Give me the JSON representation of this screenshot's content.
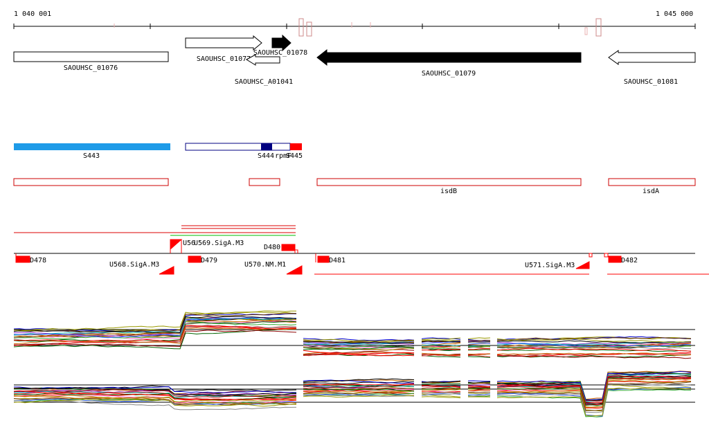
{
  "window": {
    "title": ""
  },
  "ruler": {
    "start_label": "1 040 001",
    "end_label": "1 045 000",
    "start": 1040001,
    "end": 1045000
  },
  "genes": [
    {
      "id": "gene-SAOUHSC_01076",
      "label": "SAOUHSC_01076",
      "strand": "none",
      "filled": false
    },
    {
      "id": "gene-SAOUHSC_01077",
      "label": "SAOUHSC_01077",
      "strand": "+",
      "filled": false
    },
    {
      "id": "gene-SAOUHSC_01078",
      "label": "SAOUHSC_01078",
      "strand": "+",
      "filled": true
    },
    {
      "id": "gene-SAOUHSC_A01041",
      "label": "SAOUHSC_A01041",
      "strand": "-",
      "filled": false
    },
    {
      "id": "gene-SAOUHSC_01079",
      "label": "SAOUHSC_01079",
      "strand": "-",
      "filled": true
    },
    {
      "id": "gene-SAOUHSC_01081",
      "label": "SAOUHSC_01081",
      "strand": "-",
      "filled": false
    }
  ],
  "segments": [
    {
      "label": "S443"
    },
    {
      "label": "S444"
    },
    {
      "label": "rpmF"
    },
    {
      "label": "S445"
    }
  ],
  "features": [
    {
      "label": "isdB"
    },
    {
      "label": "isdA"
    }
  ],
  "transcripts": [
    {
      "label": "D478"
    },
    {
      "label": "D479"
    },
    {
      "label": "D480"
    },
    {
      "label": "D481"
    },
    {
      "label": "D482"
    },
    {
      "label": "U568.SigA.M3"
    },
    {
      "label": "U570.NM.M1"
    },
    {
      "label": "U571.SigA.M3"
    },
    {
      "label": "U569.SigA.M3"
    }
  ],
  "overlap_label": "U56",
  "colors": {
    "segment_blue": "#1e9be8",
    "navy": "#000080",
    "feature_red": "#cc0000",
    "accent_red": "#ff0000",
    "green": "#00bb00",
    "tick_pink": "#e8a0a0"
  }
}
